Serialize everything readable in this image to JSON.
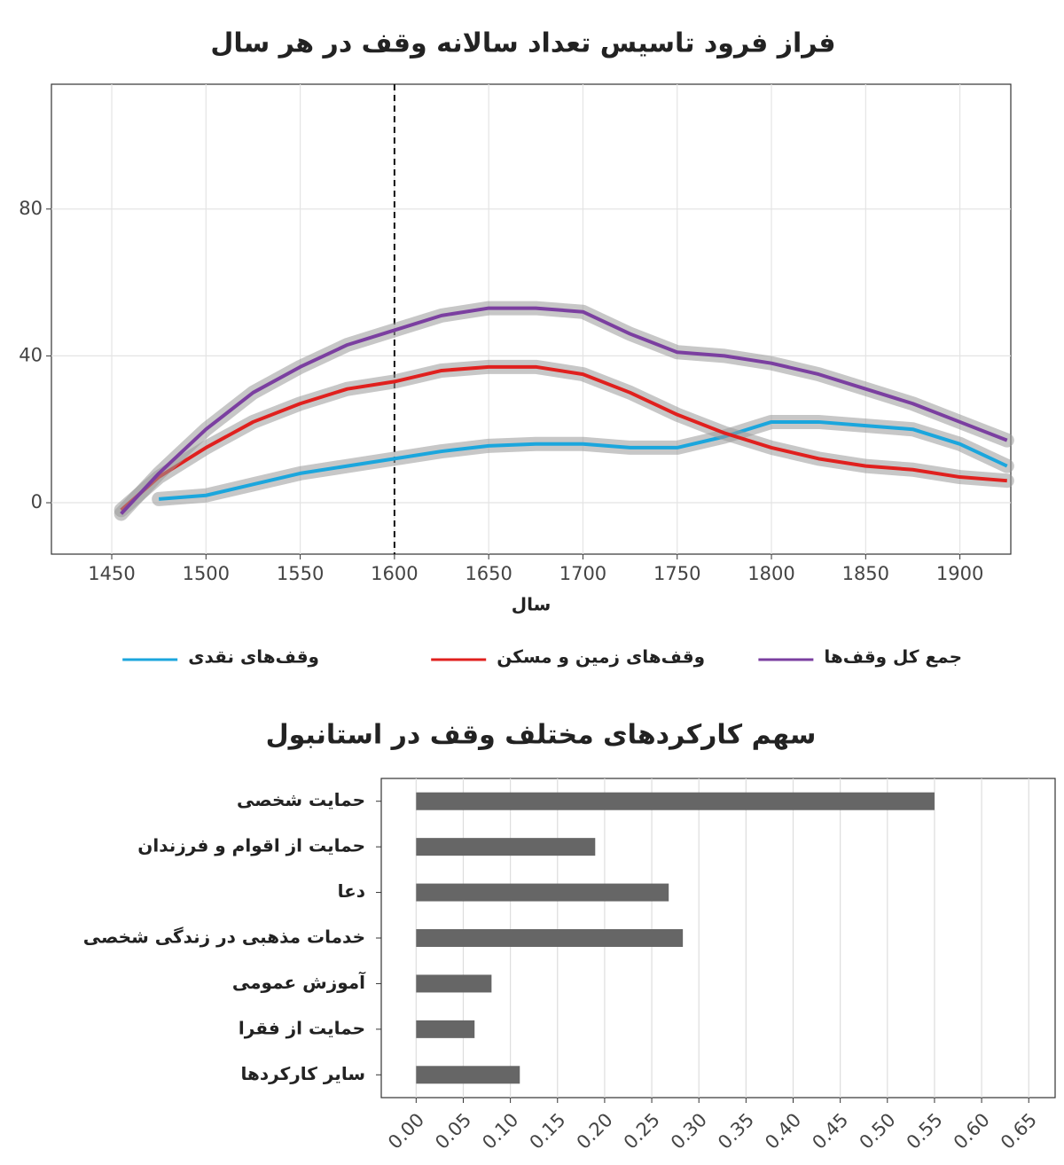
{
  "chart_data": [
    {
      "type": "line",
      "title": "فراز فرود تاسیس تعداد سالانه وقف در هر سال",
      "x_label": "سال",
      "x": [
        1455,
        1475,
        1500,
        1525,
        1550,
        1575,
        1600,
        1625,
        1650,
        1675,
        1700,
        1725,
        1750,
        1775,
        1800,
        1825,
        1850,
        1875,
        1900,
        1925
      ],
      "series": [
        {
          "name": "وقف‌های نقدی",
          "color": "#1ba6dd",
          "values": [
            null,
            1,
            2,
            5,
            8,
            10,
            12,
            14,
            15.5,
            16,
            16,
            15,
            15,
            18,
            22,
            22,
            21,
            20,
            16,
            10
          ]
        },
        {
          "name": "وقف‌های زمین و مسکن",
          "color": "#e0201e",
          "values": [
            -2,
            7,
            15,
            22,
            27,
            31,
            33,
            36,
            37,
            37,
            35,
            30,
            24,
            19,
            15,
            12,
            10,
            9,
            7,
            6
          ]
        },
        {
          "name": "جمع کل وقف‌ها",
          "color": "#7b3fa0",
          "values": [
            -3,
            8,
            20,
            30,
            37,
            43,
            47,
            51,
            53,
            53,
            52,
            46,
            41,
            40,
            38,
            35,
            31,
            27,
            22,
            17
          ]
        }
      ],
      "vline": 1600,
      "xlim": [
        1418,
        1927
      ],
      "xticks": [
        1450,
        1500,
        1550,
        1600,
        1650,
        1700,
        1750,
        1800,
        1850,
        1900
      ],
      "ylim": [
        -14,
        114
      ],
      "yticks": [
        0,
        40,
        80
      ],
      "grid": true
    },
    {
      "type": "bar",
      "title": "سهم کارکردهای مختلف وقف در استانبول",
      "categories": [
        "حمایت شخصی",
        "حمایت از اقوام و فرزندان",
        "دعا",
        "خدمات مذهبی در زندگی شخصی",
        "آموزش عمومی",
        "حمایت از فقرا",
        "سایر کارکردها"
      ],
      "values": [
        0.55,
        0.19,
        0.268,
        0.283,
        0.08,
        0.062,
        0.11
      ],
      "color": "#666666",
      "xlim": [
        -0.037,
        0.678
      ],
      "xticks": [
        {
          "value": 0,
          "label": "0.00"
        },
        {
          "value": 0.05,
          "label": "0.05"
        },
        {
          "value": 0.1,
          "label": "0.10"
        },
        {
          "value": 0.15,
          "label": "0.15"
        },
        {
          "value": 0.2,
          "label": "0.20"
        },
        {
          "value": 0.25,
          "label": "0.25"
        },
        {
          "value": 0.3,
          "label": "0.30"
        },
        {
          "value": 0.35,
          "label": "0.35"
        },
        {
          "value": 0.4,
          "label": "0.40"
        },
        {
          "value": 0.45,
          "label": "0.45"
        },
        {
          "value": 0.5,
          "label": "0.50"
        },
        {
          "value": 0.55,
          "label": "0.55"
        },
        {
          "value": 0.6,
          "label": "0.60"
        },
        {
          "value": 0.65,
          "label": "0.65"
        }
      ],
      "grid": true
    }
  ]
}
